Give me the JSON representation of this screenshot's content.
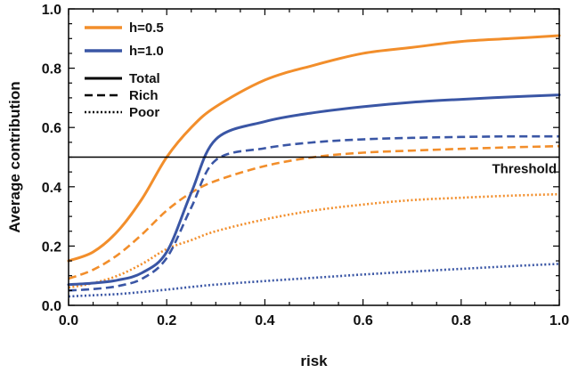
{
  "chart_data": {
    "type": "line",
    "title": "",
    "xlabel": "risk",
    "ylabel": "Average contribution",
    "xlim": [
      0.0,
      1.0
    ],
    "ylim": [
      0.0,
      1.0
    ],
    "xticks": [
      "0.0",
      "0.2",
      "0.4",
      "0.6",
      "0.8",
      "1.0"
    ],
    "yticks": [
      "0.0",
      "0.2",
      "0.4",
      "0.6",
      "0.8",
      "1.0"
    ],
    "grid": false,
    "legend_position": "top-left",
    "colors": {
      "h05": "#f28e2b",
      "h10": "#3a56a5",
      "threshold": "#000000"
    },
    "legend": {
      "colors": [
        {
          "label": "h=0.5",
          "color": "#f28e2b"
        },
        {
          "label": "h=1.0",
          "color": "#3a56a5"
        }
      ],
      "styles": [
        {
          "label": "Total",
          "dash": "solid"
        },
        {
          "label": "Rich",
          "dash": "dashed"
        },
        {
          "label": "Poor",
          "dash": "dotted"
        }
      ]
    },
    "threshold": {
      "value": 0.5,
      "label": "Threshold"
    },
    "x": [
      0.0,
      0.05,
      0.1,
      0.15,
      0.2,
      0.25,
      0.3,
      0.4,
      0.5,
      0.6,
      0.7,
      0.8,
      0.9,
      1.0
    ],
    "series": [
      {
        "h": "h=0.5",
        "group": "Total",
        "dash": "solid",
        "color": "#f28e2b",
        "values": [
          0.15,
          0.18,
          0.25,
          0.36,
          0.5,
          0.6,
          0.67,
          0.76,
          0.81,
          0.85,
          0.87,
          0.89,
          0.9,
          0.91
        ]
      },
      {
        "h": "h=0.5",
        "group": "Rich",
        "dash": "dashed",
        "color": "#f28e2b",
        "values": [
          0.09,
          0.12,
          0.17,
          0.24,
          0.32,
          0.38,
          0.42,
          0.47,
          0.5,
          0.515,
          0.522,
          0.528,
          0.533,
          0.537
        ]
      },
      {
        "h": "h=0.5",
        "group": "Poor",
        "dash": "dotted",
        "color": "#f28e2b",
        "values": [
          0.06,
          0.075,
          0.1,
          0.14,
          0.19,
          0.22,
          0.25,
          0.29,
          0.32,
          0.34,
          0.355,
          0.363,
          0.37,
          0.375
        ]
      },
      {
        "h": "h=1.0",
        "group": "Total",
        "dash": "solid",
        "color": "#3a56a5",
        "values": [
          0.07,
          0.075,
          0.085,
          0.11,
          0.18,
          0.38,
          0.56,
          0.62,
          0.65,
          0.67,
          0.685,
          0.695,
          0.703,
          0.71
        ]
      },
      {
        "h": "h=1.0",
        "group": "Rich",
        "dash": "dashed",
        "color": "#3a56a5",
        "values": [
          0.05,
          0.055,
          0.065,
          0.09,
          0.16,
          0.33,
          0.49,
          0.53,
          0.55,
          0.56,
          0.565,
          0.568,
          0.57,
          0.57
        ]
      },
      {
        "h": "h=1.0",
        "group": "Poor",
        "dash": "dotted",
        "color": "#3a56a5",
        "values": [
          0.03,
          0.034,
          0.038,
          0.045,
          0.053,
          0.062,
          0.07,
          0.082,
          0.093,
          0.104,
          0.114,
          0.123,
          0.132,
          0.14
        ]
      }
    ]
  }
}
